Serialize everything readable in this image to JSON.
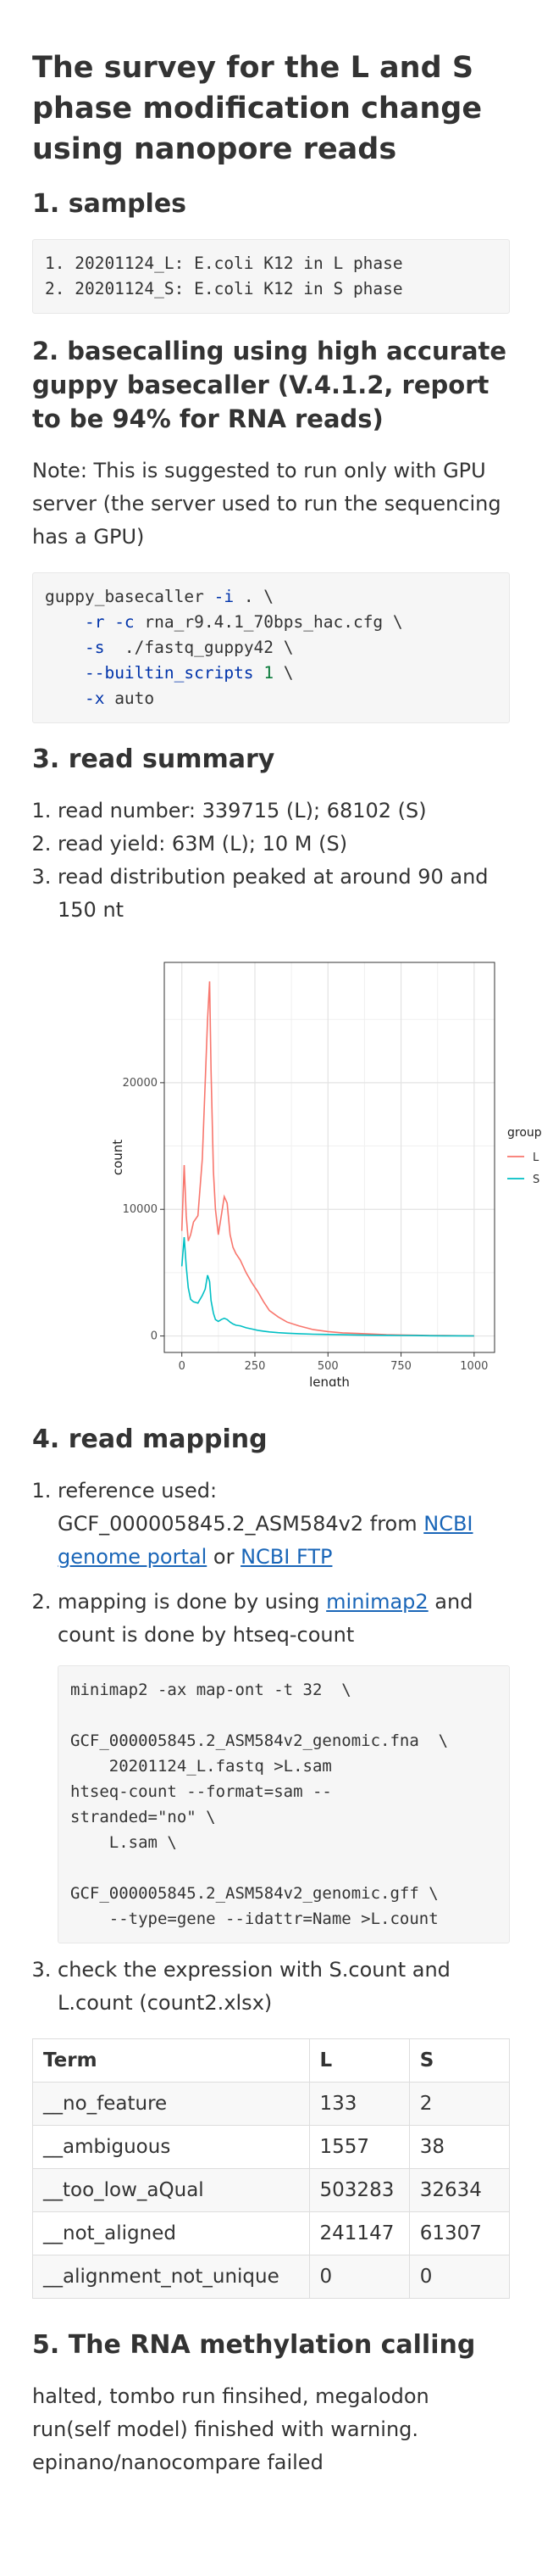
{
  "title": "The survey for the L and S phase modification change using nanopore reads",
  "section1": {
    "heading": "1. samples",
    "code_lines": [
      "1. 20201124_L: E.coli K12 in L phase",
      "2. 20201124_S: E.coli K12 in S phase"
    ]
  },
  "section2": {
    "heading": "2. basecalling using high accurate guppy basecaller (V.4.1.2, report to be 94% for RNA reads)",
    "note": "Note: This is suggested to run only with GPU server (the server used to run the sequencing has a GPU)",
    "code": {
      "l1_cmd": "guppy_basecaller",
      "l1_flag": "-i",
      "l1_rest": " . \\",
      "l2_flag": "-r -c",
      "l2_rest": " rna_r9.4.1_70bps_hac.cfg \\",
      "l3_flag": "-s",
      "l3_rest": "  ./fastq_guppy42 \\",
      "l4_flag": "--builtin_scripts",
      "l4_num": "1",
      "l4_rest": " \\",
      "l5_flag": "-x",
      "l5_rest": " auto"
    }
  },
  "section3": {
    "heading": "3. read summary",
    "items": [
      "read number: 339715 (L); 68102 (S)",
      "read yield: 63M (L); 10 M (S)",
      "read distribution peaked at around 90 and 150 nt"
    ]
  },
  "chart_data": {
    "type": "line",
    "xlabel": "length",
    "ylabel": "count",
    "xlim": [
      -60,
      1070
    ],
    "ylim": [
      -1300,
      29500
    ],
    "xticks": [
      0,
      250,
      500,
      750,
      1000
    ],
    "yticks": [
      0,
      10000,
      20000
    ],
    "tick_labels_x": [
      "0",
      "250",
      "500",
      "750",
      "1000"
    ],
    "tick_labels_y": [
      "0",
      "10000",
      "20000"
    ],
    "grid": true,
    "legend": {
      "title": "group",
      "placement": "right"
    },
    "series": [
      {
        "name": "L",
        "color": "#F8766D",
        "x": [
          0,
          8,
          15,
          22,
          30,
          40,
          55,
          70,
          80,
          88,
          95,
          100,
          108,
          115,
          125,
          135,
          145,
          155,
          165,
          175,
          185,
          200,
          220,
          240,
          260,
          280,
          300,
          330,
          360,
          400,
          450,
          500,
          550,
          600,
          650,
          700,
          750,
          800,
          850,
          900,
          950,
          1000
        ],
        "values": [
          8300,
          13500,
          9500,
          7500,
          8000,
          9000,
          9500,
          14000,
          20000,
          25000,
          28000,
          21000,
          13000,
          10000,
          8000,
          9500,
          11000,
          10500,
          8000,
          7000,
          6500,
          6000,
          5000,
          4200,
          3500,
          2700,
          2000,
          1500,
          1100,
          800,
          500,
          350,
          250,
          200,
          150,
          100,
          80,
          60,
          40,
          30,
          20,
          10
        ]
      },
      {
        "name": "S",
        "color": "#00BFC4",
        "x": [
          0,
          8,
          15,
          22,
          30,
          40,
          55,
          70,
          80,
          88,
          95,
          100,
          108,
          115,
          125,
          135,
          145,
          155,
          165,
          175,
          185,
          200,
          220,
          240,
          260,
          280,
          300,
          330,
          360,
          400,
          450,
          500,
          550,
          600,
          650,
          700,
          750,
          800,
          850,
          900,
          950,
          1000
        ],
        "values": [
          5500,
          7800,
          5500,
          3800,
          2900,
          2700,
          2600,
          3200,
          3700,
          4800,
          4300,
          2800,
          1800,
          1300,
          1150,
          1300,
          1400,
          1300,
          1100,
          950,
          850,
          800,
          650,
          550,
          450,
          380,
          320,
          260,
          220,
          180,
          140,
          120,
          100,
          80,
          60,
          50,
          40,
          30,
          20,
          15,
          10,
          5
        ]
      }
    ]
  },
  "section4": {
    "heading": "4. read mapping",
    "item1": {
      "text": "reference used: GCF_000005845.2_ASM584v2 from ",
      "link1": "NCBI genome portal",
      "or": " or ",
      "link2": "NCBI FTP"
    },
    "item2": {
      "pre": "mapping is done by using ",
      "link": "minimap2",
      "post": " and count is done by htseq-count",
      "code_lines": [
        "minimap2 -ax map-ont -t 32  \\",
        "",
        "GCF_000005845.2_ASM584v2_genomic.fna  \\",
        "    20201124_L.fastq >L.sam",
        "htseq-count --format=sam --",
        "stranded=\"no\" \\",
        "    L.sam \\",
        "",
        "GCF_000005845.2_ASM584v2_genomic.gff \\",
        "    --type=gene --idattr=Name >L.count"
      ]
    },
    "item3": "check the expression with S.count and L.count (count2.xlsx)"
  },
  "table": {
    "headers": [
      "Term",
      "L",
      "S"
    ],
    "rows": [
      [
        "__no_feature",
        "133",
        "2"
      ],
      [
        "__ambiguous",
        "1557",
        "38"
      ],
      [
        "__too_low_aQual",
        "503283",
        "32634"
      ],
      [
        "__not_aligned",
        "241147",
        "61307"
      ],
      [
        "__alignment_not_unique",
        "0",
        "0"
      ]
    ]
  },
  "section5": {
    "heading": "5. The RNA methylation calling",
    "text": "halted, tombo run finsihed, megalodon run(self model) finished with warning. epinano/nanocompare failed"
  }
}
